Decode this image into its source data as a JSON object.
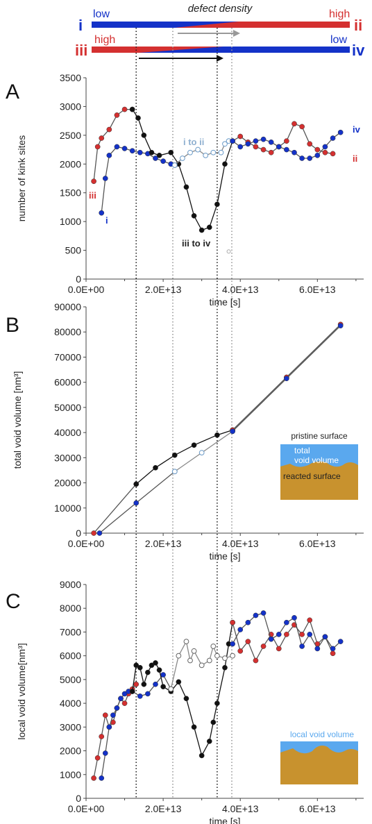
{
  "colors": {
    "blue": "#1432c8",
    "red": "#d43030",
    "black": "#111111",
    "gray": "#999999",
    "lightblue": "#a8c8e8",
    "sky": "#5aa8ee",
    "tan": "#c8922e"
  },
  "header": {
    "title": "defect density",
    "bar1": {
      "left_id": "i",
      "left_label": "low",
      "right_label": "high",
      "right_id": "ii"
    },
    "bar2": {
      "left_id": "iii",
      "left_label": "high",
      "right_label": "low",
      "right_id": "iv"
    }
  },
  "guide_lines_x": [
    13000000000000.0,
    22500000000000.0,
    34000000000000.0,
    37800000000000.0
  ],
  "chart_data": [
    {
      "panel": "A",
      "type": "scatter",
      "xlabel": "time [s]",
      "ylabel": "number of kink sites",
      "xlim": [
        0,
        72000000000000.0
      ],
      "ylim": [
        0,
        3500
      ],
      "xticks": [
        "0.0E+00",
        "2.0E+13",
        "4.0E+13",
        "6.0E+13"
      ],
      "yticks": [
        "0",
        "500",
        "1000",
        "1500",
        "2000",
        "2500",
        "3000",
        "3500"
      ],
      "annotations": {
        "i": "i",
        "ii": "ii",
        "iii": "iii",
        "iv": "iv",
        "i_to_ii": "i to ii",
        "iii_to_iv": "iii to iv"
      },
      "series": [
        {
          "color": "blue",
          "points": [
            [
              4000000000000.0,
              1150
            ],
            [
              5000000000000.0,
              1750
            ],
            [
              6000000000000.0,
              2150
            ],
            [
              8000000000000.0,
              2300
            ],
            [
              10000000000000.0,
              2270
            ],
            [
              12000000000000.0,
              2230
            ],
            [
              14000000000000.0,
              2200
            ],
            [
              16000000000000.0,
              2180
            ],
            [
              18000000000000.0,
              2100
            ],
            [
              20000000000000.0,
              2050
            ],
            [
              22000000000000.0,
              2000
            ],
            [
              23000000000000.0,
              1980
            ]
          ]
        },
        {
          "color": "red",
          "points": [
            [
              2000000000000.0,
              1700
            ],
            [
              3000000000000.0,
              2300
            ],
            [
              4000000000000.0,
              2450
            ],
            [
              6000000000000.0,
              2600
            ],
            [
              8000000000000.0,
              2850
            ],
            [
              10000000000000.0,
              2950
            ],
            [
              12000000000000.0,
              2950
            ]
          ]
        },
        {
          "color": "black",
          "points": [
            [
              12000000000000.0,
              2950
            ],
            [
              13500000000000.0,
              2800
            ],
            [
              15000000000000.0,
              2500
            ],
            [
              17000000000000.0,
              2200
            ],
            [
              19000000000000.0,
              2150
            ],
            [
              22000000000000.0,
              2200
            ],
            [
              24000000000000.0,
              2000
            ],
            [
              26000000000000.0,
              1600
            ],
            [
              28000000000000.0,
              1100
            ],
            [
              30000000000000.0,
              850
            ],
            [
              32000000000000.0,
              900
            ],
            [
              34000000000000.0,
              1300
            ],
            [
              36000000000000.0,
              2000
            ],
            [
              38000000000000.0,
              2400
            ]
          ]
        },
        {
          "color": "lightblue",
          "hollow": true,
          "points": [
            [
              23000000000000.0,
              1980
            ],
            [
              25000000000000.0,
              2100
            ],
            [
              27000000000000.0,
              2200
            ],
            [
              29000000000000.0,
              2250
            ],
            [
              31000000000000.0,
              2150
            ],
            [
              33000000000000.0,
              2200
            ],
            [
              35000000000000.0,
              2200
            ],
            [
              36000000000000.0,
              2350
            ],
            [
              37000000000000.0,
              2400
            ]
          ]
        },
        {
          "color": "red",
          "points": [
            [
              38000000000000.0,
              2400
            ],
            [
              40000000000000.0,
              2480
            ],
            [
              42000000000000.0,
              2380
            ],
            [
              44000000000000.0,
              2300
            ],
            [
              46000000000000.0,
              2250
            ],
            [
              48000000000000.0,
              2200
            ],
            [
              50000000000000.0,
              2300
            ],
            [
              52000000000000.0,
              2400
            ],
            [
              54000000000000.0,
              2700
            ],
            [
              56000000000000.0,
              2650
            ],
            [
              58000000000000.0,
              2350
            ],
            [
              60000000000000.0,
              2250
            ],
            [
              62000000000000.0,
              2200
            ],
            [
              64000000000000.0,
              2180
            ]
          ]
        },
        {
          "color": "blue",
          "points": [
            [
              38000000000000.0,
              2400
            ],
            [
              40000000000000.0,
              2300
            ],
            [
              42000000000000.0,
              2350
            ],
            [
              44000000000000.0,
              2400
            ],
            [
              46000000000000.0,
              2430
            ],
            [
              48000000000000.0,
              2380
            ],
            [
              50000000000000.0,
              2300
            ],
            [
              52000000000000.0,
              2250
            ],
            [
              54000000000000.0,
              2200
            ],
            [
              56000000000000.0,
              2100
            ],
            [
              58000000000000.0,
              2100
            ],
            [
              60000000000000.0,
              2150
            ],
            [
              62000000000000.0,
              2300
            ],
            [
              64000000000000.0,
              2450
            ],
            [
              66000000000000.0,
              2550
            ]
          ]
        }
      ]
    },
    {
      "panel": "B",
      "type": "scatter",
      "xlabel": "time [s]",
      "ylabel": "total void volume [nm³]",
      "xlim": [
        0,
        72000000000000.0
      ],
      "ylim": [
        0,
        90000
      ],
      "xticks": [
        "0.0E+00",
        "2.0E+13",
        "4.0E+13",
        "6.0E+13"
      ],
      "yticks": [
        "0",
        "10000",
        "20000",
        "30000",
        "40000",
        "50000",
        "60000",
        "70000",
        "80000",
        "90000"
      ],
      "inset": {
        "top_label": "pristine surface",
        "middle_label_1": "total",
        "middle_label_2": "void volume",
        "bottom_label": "reacted surface"
      },
      "series": [
        {
          "color": "red",
          "points": [
            [
              2000000000000.0,
              0
            ],
            [
              13000000000000.0,
              19500
            ]
          ]
        },
        {
          "color": "blue",
          "points": [
            [
              3500000000000.0,
              0
            ],
            [
              13000000000000.0,
              12000
            ],
            [
              23000000000000.0,
              24500
            ]
          ]
        },
        {
          "color": "black",
          "points": [
            [
              13000000000000.0,
              19500
            ],
            [
              18000000000000.0,
              26000
            ],
            [
              23000000000000.0,
              31000
            ],
            [
              28000000000000.0,
              35000
            ],
            [
              34000000000000.0,
              39000
            ],
            [
              38000000000000.0,
              41000
            ]
          ]
        },
        {
          "color": "lightblue",
          "hollow": true,
          "points": [
            [
              23000000000000.0,
              24500
            ],
            [
              30000000000000.0,
              32000
            ],
            [
              38000000000000.0,
              40500
            ]
          ]
        },
        {
          "color": "red",
          "points": [
            [
              38000000000000.0,
              41000
            ],
            [
              52000000000000.0,
              62000
            ],
            [
              66000000000000.0,
              83000
            ]
          ]
        },
        {
          "color": "blue",
          "points": [
            [
              38000000000000.0,
              40500
            ],
            [
              52000000000000.0,
              61500
            ],
            [
              66000000000000.0,
              82500
            ]
          ]
        }
      ]
    },
    {
      "panel": "C",
      "type": "scatter",
      "xlabel": "time [s]",
      "ylabel": "local void volume[nm³]",
      "xlim": [
        0,
        72000000000000.0
      ],
      "ylim": [
        0,
        9000
      ],
      "xticks": [
        "0.0E+00",
        "2.0E+13",
        "4.0E+13",
        "6.0E+13"
      ],
      "yticks": [
        "0",
        "1000",
        "2000",
        "3000",
        "4000",
        "5000",
        "6000",
        "7000",
        "8000",
        "9000"
      ],
      "inset": {
        "label": "local void volume"
      },
      "series": [
        {
          "color": "red",
          "points": [
            [
              2000000000000.0,
              850
            ],
            [
              3000000000000.0,
              1700
            ],
            [
              4000000000000.0,
              2600
            ],
            [
              5000000000000.0,
              3500
            ],
            [
              6000000000000.0,
              3000
            ],
            [
              7000000000000.0,
              3200
            ],
            [
              8000000000000.0,
              3800
            ],
            [
              9000000000000.0,
              4200
            ],
            [
              10000000000000.0,
              4000
            ],
            [
              11000000000000.0,
              4400
            ],
            [
              12000000000000.0,
              4600
            ],
            [
              13000000000000.0,
              4800
            ]
          ]
        },
        {
          "color": "blue",
          "points": [
            [
              4000000000000.0,
              850
            ],
            [
              5000000000000.0,
              1900
            ],
            [
              6000000000000.0,
              3000
            ],
            [
              7000000000000.0,
              3500
            ],
            [
              8000000000000.0,
              3800
            ],
            [
              9000000000000.0,
              4200
            ],
            [
              10000000000000.0,
              4400
            ],
            [
              11000000000000.0,
              4500
            ],
            [
              12000000000000.0,
              4500
            ],
            [
              14000000000000.0,
              4300
            ],
            [
              16000000000000.0,
              4400
            ],
            [
              18000000000000.0,
              4800
            ],
            [
              20000000000000.0,
              5200
            ],
            [
              22000000000000.0,
              4600
            ]
          ]
        },
        {
          "color": "black",
          "points": [
            [
              12000000000000.0,
              4500
            ],
            [
              13000000000000.0,
              5600
            ],
            [
              14000000000000.0,
              5500
            ],
            [
              15000000000000.0,
              4800
            ],
            [
              16000000000000.0,
              5300
            ],
            [
              17000000000000.0,
              5600
            ],
            [
              18000000000000.0,
              5700
            ],
            [
              19000000000000.0,
              5400
            ],
            [
              20000000000000.0,
              4700
            ],
            [
              22000000000000.0,
              4500
            ],
            [
              24000000000000.0,
              4900
            ],
            [
              26000000000000.0,
              4200
            ],
            [
              28000000000000.0,
              3000
            ],
            [
              30000000000000.0,
              1800
            ],
            [
              32000000000000.0,
              2400
            ],
            [
              33000000000000.0,
              3200
            ],
            [
              34000000000000.0,
              4000
            ],
            [
              36000000000000.0,
              5500
            ],
            [
              37000000000000.0,
              6500
            ],
            [
              38000000000000.0,
              7400
            ]
          ]
        },
        {
          "color": "gray",
          "hollow": true,
          "points": [
            [
              22000000000000.0,
              4600
            ],
            [
              24000000000000.0,
              6000
            ],
            [
              26000000000000.0,
              6600
            ],
            [
              27000000000000.0,
              5800
            ],
            [
              28000000000000.0,
              6200
            ],
            [
              30000000000000.0,
              5600
            ],
            [
              32000000000000.0,
              5800
            ],
            [
              33000000000000.0,
              6400
            ],
            [
              34000000000000.0,
              6000
            ],
            [
              36000000000000.0,
              5900
            ],
            [
              38000000000000.0,
              6000
            ]
          ]
        },
        {
          "color": "red",
          "points": [
            [
              38000000000000.0,
              7400
            ],
            [
              40000000000000.0,
              6200
            ],
            [
              42000000000000.0,
              6600
            ],
            [
              44000000000000.0,
              5800
            ],
            [
              46000000000000.0,
              6400
            ],
            [
              48000000000000.0,
              6900
            ],
            [
              50000000000000.0,
              6300
            ],
            [
              52000000000000.0,
              6900
            ],
            [
              54000000000000.0,
              7300
            ],
            [
              56000000000000.0,
              6900
            ],
            [
              58000000000000.0,
              7500
            ],
            [
              60000000000000.0,
              6500
            ],
            [
              62000000000000.0,
              6800
            ],
            [
              64000000000000.0,
              6100
            ]
          ]
        },
        {
          "color": "blue",
          "points": [
            [
              38000000000000.0,
              6500
            ],
            [
              40000000000000.0,
              7100
            ],
            [
              42000000000000.0,
              7400
            ],
            [
              44000000000000.0,
              7700
            ],
            [
              46000000000000.0,
              7800
            ],
            [
              48000000000000.0,
              6700
            ],
            [
              50000000000000.0,
              6900
            ],
            [
              52000000000000.0,
              7400
            ],
            [
              54000000000000.0,
              7600
            ],
            [
              56000000000000.0,
              6400
            ],
            [
              58000000000000.0,
              6900
            ],
            [
              60000000000000.0,
              6300
            ],
            [
              62000000000000.0,
              6800
            ],
            [
              64000000000000.0,
              6300
            ],
            [
              66000000000000.0,
              6600
            ]
          ]
        }
      ]
    }
  ]
}
